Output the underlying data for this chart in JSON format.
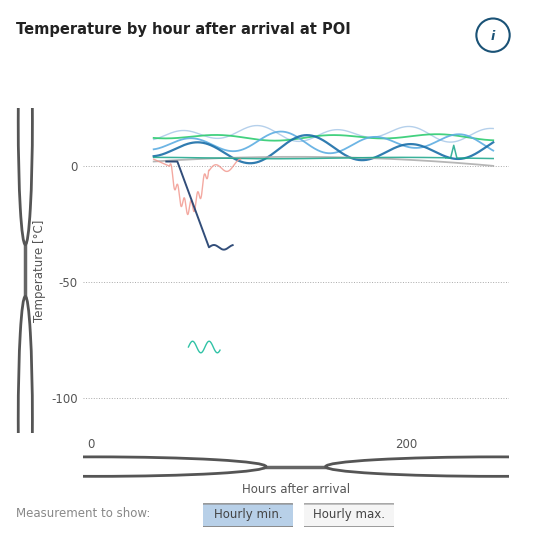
{
  "title": "Temperature by hour after arrival at POI",
  "xlabel": "Hours after arrival",
  "ylabel": "Temperature [°C]",
  "xlim": [
    -5,
    265
  ],
  "ylim": [
    -115,
    25
  ],
  "yticks": [
    0,
    -50,
    -100
  ],
  "xticks": [
    0,
    200
  ],
  "background_color": "#ffffff",
  "plot_bg_color": "#ffffff",
  "grid_color": "#aaaaaa",
  "title_fontsize": 10.5,
  "axis_fontsize": 8.5,
  "tick_fontsize": 8.5,
  "info_icon_color": "#1a5276",
  "slider_color": "#555555",
  "button_hourly_min_bg": "#b8d0e8",
  "button_hourly_max_bg": "#f5f5f5",
  "button_text_color": "#555555"
}
